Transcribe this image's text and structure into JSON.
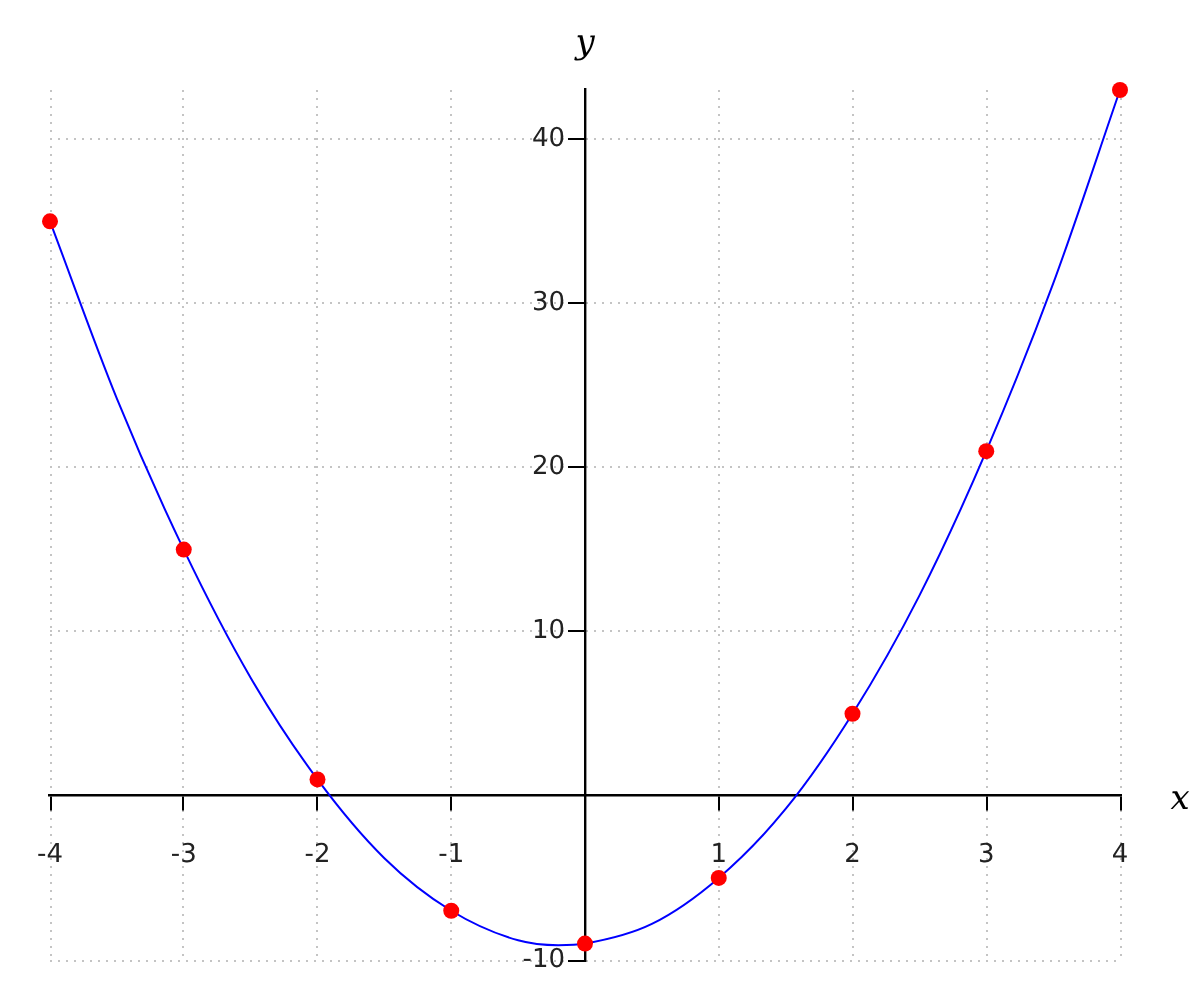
{
  "chart_data": {
    "type": "line",
    "xlabel": "x",
    "ylabel": "y",
    "xlim": [
      -4,
      4
    ],
    "xticks": [
      -4,
      -3,
      -2,
      -1,
      1,
      2,
      3,
      4
    ],
    "ylim": [
      -10,
      43
    ],
    "yticks": [
      -10,
      10,
      20,
      30,
      40
    ],
    "grid": true,
    "line_style": "solid",
    "series": [
      {
        "color": "#0000ff",
        "marker": "none",
        "x": [
          -4,
          -3.5,
          -3,
          -2.5,
          -2,
          -1.5,
          -1,
          -0.5,
          -0.2,
          0,
          0.5,
          1,
          1.5,
          2,
          2.5,
          3,
          3.5,
          4
        ],
        "values": [
          35,
          24.2,
          15,
          7.2,
          1,
          -3.8,
          -7,
          -8.8,
          -9.1,
          -9,
          -7.8,
          -5,
          -0.8,
          5,
          12.2,
          21,
          31.2,
          43
        ]
      },
      {
        "type": "scatter",
        "color": "#ff0000",
        "marker": "circle",
        "x": [
          -4,
          -3,
          -2,
          -1,
          0,
          1,
          2,
          3,
          4
        ],
        "values": [
          35,
          15,
          1,
          -7,
          -9,
          -5,
          5,
          21,
          43
        ]
      }
    ]
  }
}
